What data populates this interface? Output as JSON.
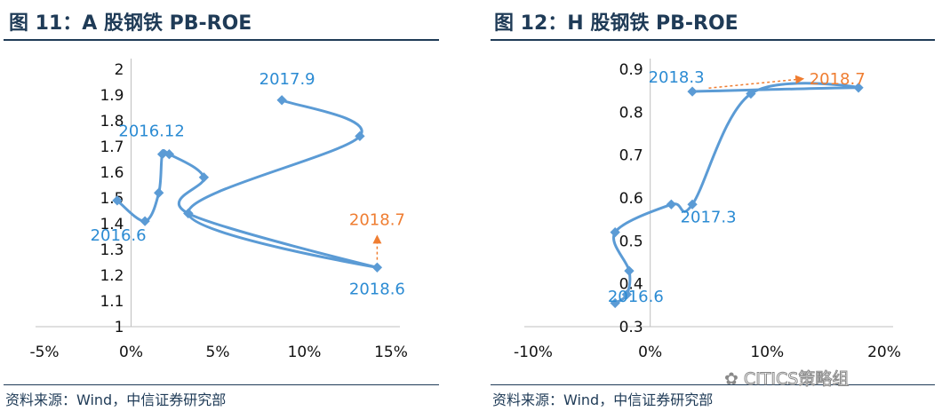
{
  "colors": {
    "line": "#5b9bd5",
    "label": "#2b8bd3",
    "highlight": "#ef7d31",
    "title": "#1f3b57"
  },
  "watermark": {
    "icon": "wechat-icon",
    "text": "CITICS策略组"
  },
  "chart_data": [
    {
      "type": "line",
      "title": "图 11：A 股钢铁 PB-ROE",
      "source": "资料来源：Wind，中信证券研究部",
      "xlim": [
        -0.05,
        0.15
      ],
      "ylim": [
        1,
        2
      ],
      "x_ticks": [
        -0.05,
        0,
        0.05,
        0.1,
        0.15
      ],
      "x_tick_labels": [
        "-5%",
        "0%",
        "5%",
        "10%",
        "15%"
      ],
      "y_ticks": [
        1,
        1.1,
        1.2,
        1.3,
        1.4,
        1.5,
        1.6,
        1.7,
        1.8,
        1.9,
        2
      ],
      "y_tick_labels": [
        "1",
        "1.1",
        "1.2",
        "1.3",
        "1.4",
        "1.5",
        "1.6",
        "1.7",
        "1.8",
        "1.9",
        "2"
      ],
      "series": [
        {
          "name": "A 股钢铁",
          "points": [
            [
              -0.008,
              1.49
            ],
            [
              0.008,
              1.41
            ],
            [
              0.016,
              1.52
            ],
            [
              0.018,
              1.67
            ],
            [
              0.022,
              1.67
            ],
            [
              0.042,
              1.58
            ],
            [
              0.033,
              1.44
            ],
            [
              0.142,
              1.23
            ],
            [
              0.033,
              1.44
            ],
            [
              0.132,
              1.74
            ],
            [
              0.087,
              1.88
            ]
          ]
        }
      ],
      "point_labels": [
        {
          "text": "2016.6",
          "at": [
            0.008,
            1.41
          ],
          "dx": -30,
          "dy": 22
        },
        {
          "text": "2016.12",
          "at": [
            0.018,
            1.67
          ],
          "dx": -12,
          "dy": -20
        },
        {
          "text": "2017.9",
          "at": [
            0.087,
            1.88
          ],
          "dx": 6,
          "dy": -18
        },
        {
          "text": "2018.6",
          "at": [
            0.142,
            1.23
          ],
          "dx": 0,
          "dy": 30
        }
      ],
      "highlight": {
        "text": "2018.7",
        "from": [
          0.142,
          1.26
        ],
        "to": [
          0.142,
          1.34
        ],
        "direction": "up"
      }
    },
    {
      "type": "line",
      "title": "图 12：H 股钢铁 PB-ROE",
      "source": "资料来源：Wind，中信证券研究部",
      "xlim": [
        -0.1,
        0.2
      ],
      "ylim": [
        0.3,
        0.9
      ],
      "x_ticks": [
        -0.1,
        0,
        0.1,
        0.2
      ],
      "x_tick_labels": [
        "-10%",
        "0%",
        "10%",
        "20%"
      ],
      "y_ticks": [
        0.3,
        0.4,
        0.5,
        0.6,
        0.7,
        0.8,
        0.9
      ],
      "y_tick_labels": [
        "0.3",
        "0.4",
        "0.5",
        "0.6",
        "0.7",
        "0.8",
        "0.9"
      ],
      "series": [
        {
          "name": "H 股钢铁",
          "points": [
            [
              -0.03,
              0.355
            ],
            [
              -0.02,
              0.375
            ],
            [
              -0.018,
              0.43
            ],
            [
              -0.03,
              0.52
            ],
            [
              0.018,
              0.585
            ],
            [
              0.036,
              0.585
            ],
            [
              0.086,
              0.843
            ],
            [
              0.178,
              0.857
            ],
            [
              0.036,
              0.848
            ]
          ]
        }
      ],
      "point_labels": [
        {
          "text": "2016.6",
          "at": [
            -0.02,
            0.375
          ],
          "dx": 10,
          "dy": 8
        },
        {
          "text": "2017.3",
          "at": [
            0.036,
            0.585
          ],
          "dx": 18,
          "dy": 20
        },
        {
          "text": "2018.3",
          "at": [
            0.036,
            0.848
          ],
          "dx": -18,
          "dy": -10
        }
      ],
      "highlight": {
        "text": "2018.7",
        "from": [
          0.05,
          0.856
        ],
        "to": [
          0.128,
          0.877
        ],
        "direction": "right"
      }
    }
  ]
}
